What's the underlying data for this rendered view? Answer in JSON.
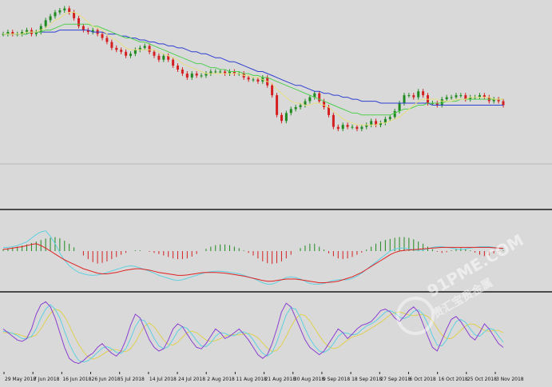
{
  "watermark": {
    "text": "91PME.COM",
    "subtitle": "贵汇宝贵金属"
  },
  "colors": {
    "background": "#d9d9d9",
    "bull": "#1f8a1f",
    "bear": "#d42020",
    "ma_fast": "#e8e080",
    "ma_mid": "#4fd04f",
    "ma_slow": "#2d3fd0",
    "macd_signal": "#e02020",
    "macd_line": "#5fd0e0",
    "stoch_k": "#8a3fd0",
    "stoch_d": "#5fd0e0",
    "stoch_slow": "#e0d050",
    "separator": "#4a4a4a"
  },
  "chart_data": [
    {
      "type": "candlestick",
      "title": "",
      "x_ticks": [
        "29 May 2018",
        "7 Jun 2018",
        "16 Jun 2018",
        "26 Jun 2018",
        "5 Jul 2018",
        "14 Jul 2018",
        "24 Jul 2018",
        "2 Aug 2018",
        "11 Aug 2018",
        "21 Aug 2018",
        "30 Aug 2018",
        "9 Sep 2018",
        "18 Sep 2018",
        "27 Sep 2018",
        "6 Oct 2018",
        "16 Oct 2018",
        "25 Oct 2018",
        "3 Nov 2018"
      ],
      "ylim": [
        0,
        100
      ],
      "close": [
        86,
        87,
        86,
        86,
        87,
        88,
        86,
        87,
        90,
        93,
        95,
        97,
        98,
        99,
        97,
        94,
        90,
        88,
        87,
        88,
        86,
        84,
        82,
        79,
        78,
        77,
        75,
        76,
        78,
        79,
        80,
        77,
        75,
        73,
        75,
        73,
        70,
        68,
        66,
        64,
        66,
        65,
        65,
        66,
        67,
        67,
        67,
        66,
        67,
        66,
        66,
        64,
        63,
        63,
        62,
        64,
        60,
        55,
        45,
        42,
        46,
        48,
        49,
        50,
        52,
        54,
        56,
        52,
        49,
        45,
        39,
        38,
        40,
        39,
        39,
        38,
        39,
        40,
        42,
        40,
        41,
        43,
        44,
        47,
        51,
        55,
        55,
        54,
        57,
        55,
        51,
        51,
        50,
        53,
        54,
        54,
        55,
        55,
        53,
        54,
        54,
        55,
        54,
        52,
        53,
        52,
        50
      ],
      "ma_fast": [
        86,
        86,
        86,
        86,
        86,
        87,
        87,
        87,
        88,
        89,
        91,
        93,
        94,
        96,
        97,
        97,
        96,
        94,
        92,
        90,
        89,
        88,
        86,
        84,
        83,
        81,
        79,
        78,
        78,
        78,
        78,
        78,
        78,
        77,
        76,
        75,
        74,
        73,
        71,
        70,
        69,
        68,
        67,
        66,
        66,
        66,
        66,
        66,
        66,
        66,
        66,
        65,
        65,
        64,
        64,
        63,
        62,
        61,
        58,
        56,
        54,
        52,
        51,
        51,
        50,
        50,
        51,
        51,
        50,
        49,
        47,
        45,
        43,
        42,
        41,
        40,
        40,
        40,
        40,
        40,
        41,
        41,
        42,
        43,
        44,
        46,
        48,
        50,
        52,
        53,
        53,
        53,
        53,
        52,
        52,
        52,
        53,
        53,
        53,
        54,
        54,
        54,
        54,
        54,
        53,
        53,
        53
      ],
      "ma_mid": [
        86,
        86,
        86,
        86,
        86,
        86,
        87,
        87,
        87,
        88,
        88,
        89,
        90,
        91,
        91,
        91,
        91,
        91,
        91,
        90,
        90,
        89,
        88,
        87,
        86,
        85,
        84,
        84,
        83,
        82,
        82,
        81,
        80,
        79,
        78,
        77,
        76,
        75,
        74,
        73,
        72,
        71,
        71,
        70,
        69,
        69,
        68,
        68,
        67,
        67,
        67,
        66,
        66,
        65,
        65,
        64,
        64,
        63,
        62,
        61,
        60,
        59,
        58,
        57,
        56,
        55,
        54,
        53,
        52,
        51,
        50,
        49,
        48,
        47,
        46,
        46,
        45,
        45,
        45,
        45,
        45,
        45,
        45,
        46,
        47,
        48,
        48,
        49,
        50,
        50,
        51,
        51,
        51,
        51,
        52,
        52,
        52,
        53,
        53,
        53,
        53,
        53,
        53,
        53,
        53,
        53,
        53
      ],
      "ma_slow": [
        86,
        86,
        86,
        86,
        86,
        86,
        87,
        87,
        87,
        87,
        87,
        87,
        88,
        88,
        88,
        88,
        88,
        88,
        88,
        87,
        87,
        87,
        86,
        86,
        86,
        85,
        85,
        84,
        84,
        83,
        83,
        82,
        82,
        81,
        81,
        80,
        80,
        79,
        79,
        78,
        77,
        77,
        76,
        76,
        75,
        74,
        74,
        73,
        72,
        72,
        71,
        70,
        69,
        68,
        67,
        67,
        66,
        65,
        64,
        63,
        62,
        61,
        60,
        60,
        59,
        58,
        57,
        57,
        56,
        56,
        55,
        55,
        54,
        54,
        53,
        53,
        52,
        52,
        52,
        52,
        51,
        51,
        51,
        51,
        51,
        51,
        51,
        51,
        51,
        51,
        51,
        50,
        50,
        50,
        50,
        50,
        50,
        50,
        50,
        50,
        50,
        50,
        50,
        50,
        50,
        50,
        50
      ]
    },
    {
      "type": "bar",
      "title": "",
      "ylim": [
        -1,
        1
      ],
      "histogram": [
        0.05,
        0.08,
        0.1,
        0.12,
        0.15,
        0.18,
        0.22,
        0.26,
        0.3,
        0.34,
        0.36,
        0.38,
        0.35,
        0.28,
        0.2,
        0.1,
        0,
        -0.12,
        -0.22,
        -0.3,
        -0.34,
        -0.32,
        -0.28,
        -0.22,
        -0.16,
        -0.1,
        -0.05,
        0,
        0.02,
        0.02,
        0,
        -0.02,
        -0.05,
        -0.08,
        -0.12,
        -0.16,
        -0.2,
        -0.22,
        -0.22,
        -0.2,
        -0.15,
        -0.08,
        0,
        0.06,
        0.12,
        0.16,
        0.18,
        0.18,
        0.16,
        0.12,
        0.08,
        0.02,
        -0.05,
        -0.12,
        -0.2,
        -0.28,
        -0.33,
        -0.35,
        -0.33,
        -0.28,
        -0.2,
        -0.1,
        0,
        0.08,
        0.15,
        0.2,
        0.2,
        0.12,
        0.04,
        -0.06,
        -0.14,
        -0.2,
        -0.22,
        -0.2,
        -0.16,
        -0.1,
        -0.04,
        0.04,
        0.12,
        0.2,
        0.26,
        0.3,
        0.33,
        0.36,
        0.38,
        0.38,
        0.36,
        0.32,
        0.26,
        0.2,
        0.12,
        0.05,
        -0.02,
        -0.05,
        -0.03,
        0.02,
        0.06,
        0.08,
        0.06,
        0.02,
        -0.04,
        -0.1,
        -0.14,
        -0.12,
        -0.06,
        -0.02,
        0.02
      ],
      "macd_line": [
        0.1,
        0.1,
        0.12,
        0.15,
        0.2,
        0.25,
        0.35,
        0.45,
        0.52,
        0.55,
        0.4,
        0.2,
        -0.05,
        -0.25,
        -0.4,
        -0.5,
        -0.58,
        -0.62,
        -0.65,
        -0.66,
        -0.65,
        -0.62,
        -0.58,
        -0.54,
        -0.5,
        -0.46,
        -0.42,
        -0.4,
        -0.42,
        -0.46,
        -0.5,
        -0.55,
        -0.6,
        -0.66,
        -0.7,
        -0.74,
        -0.78,
        -0.8,
        -0.78,
        -0.74,
        -0.7,
        -0.66,
        -0.62,
        -0.58,
        -0.56,
        -0.55,
        -0.55,
        -0.56,
        -0.58,
        -0.6,
        -0.62,
        -0.66,
        -0.7,
        -0.74,
        -0.8,
        -0.86,
        -0.9,
        -0.9,
        -0.85,
        -0.78,
        -0.72,
        -0.7,
        -0.72,
        -0.76,
        -0.82,
        -0.88,
        -0.9,
        -0.9,
        -0.88,
        -0.84,
        -0.8,
        -0.78,
        -0.78,
        -0.78,
        -0.74,
        -0.68,
        -0.6,
        -0.5,
        -0.4,
        -0.3,
        -0.2,
        -0.1,
        0,
        0.05,
        0.08,
        0.08,
        0.06,
        0.03,
        0.02,
        0.03,
        0.06,
        0.1,
        0.12,
        0.12,
        0.1,
        0.08,
        0.06,
        0.05,
        0.06,
        0.08,
        0.1,
        0.12,
        0.12,
        0.12,
        0.1,
        0.08,
        0.06
      ],
      "signal_line": [
        0.05,
        0.06,
        0.08,
        0.1,
        0.12,
        0.15,
        0.18,
        0.2,
        0.15,
        0.08,
        0,
        -0.08,
        -0.16,
        -0.24,
        -0.3,
        -0.36,
        -0.42,
        -0.48,
        -0.52,
        -0.56,
        -0.6,
        -0.62,
        -0.62,
        -0.6,
        -0.58,
        -0.55,
        -0.52,
        -0.5,
        -0.48,
        -0.48,
        -0.5,
        -0.52,
        -0.55,
        -0.58,
        -0.6,
        -0.62,
        -0.64,
        -0.66,
        -0.66,
        -0.65,
        -0.63,
        -0.61,
        -0.59,
        -0.58,
        -0.58,
        -0.58,
        -0.59,
        -0.6,
        -0.62,
        -0.64,
        -0.66,
        -0.68,
        -0.71,
        -0.74,
        -0.77,
        -0.8,
        -0.82,
        -0.82,
        -0.8,
        -0.78,
        -0.76,
        -0.76,
        -0.76,
        -0.78,
        -0.8,
        -0.82,
        -0.84,
        -0.86,
        -0.86,
        -0.85,
        -0.84,
        -0.82,
        -0.78,
        -0.74,
        -0.7,
        -0.64,
        -0.58,
        -0.5,
        -0.42,
        -0.34,
        -0.26,
        -0.18,
        -0.1,
        -0.04,
        0,
        0.02,
        0.03,
        0.04,
        0.05,
        0.06,
        0.07,
        0.08,
        0.09,
        0.1,
        0.1,
        0.1,
        0.1,
        0.1,
        0.1,
        0.1,
        0.1,
        0.1,
        0.1,
        0.1,
        0.09,
        0.08,
        0.07
      ]
    },
    {
      "type": "line",
      "title": "",
      "ylim": [
        0,
        100
      ],
      "stoch_k": [
        55,
        50,
        45,
        40,
        38,
        42,
        55,
        75,
        88,
        92,
        85,
        70,
        50,
        30,
        15,
        10,
        8,
        12,
        18,
        22,
        30,
        35,
        28,
        22,
        18,
        25,
        40,
        60,
        75,
        70,
        55,
        40,
        30,
        25,
        28,
        40,
        55,
        62,
        58,
        48,
        38,
        30,
        28,
        35,
        45,
        55,
        50,
        42,
        45,
        50,
        55,
        48,
        40,
        30,
        20,
        15,
        20,
        35,
        55,
        78,
        90,
        85,
        70,
        55,
        40,
        30,
        25,
        20,
        25,
        35,
        45,
        55,
        50,
        42,
        48,
        55,
        60,
        62,
        65,
        72,
        80,
        82,
        78,
        70,
        65,
        72,
        80,
        85,
        78,
        62,
        45,
        30,
        25,
        40,
        55,
        68,
        72,
        65,
        55,
        45,
        40,
        50,
        62,
        55,
        45,
        35,
        30
      ],
      "stoch_d": [
        52,
        51,
        49,
        46,
        42,
        42,
        45,
        55,
        70,
        82,
        88,
        82,
        70,
        52,
        35,
        22,
        12,
        10,
        12,
        17,
        23,
        29,
        31,
        28,
        23,
        22,
        28,
        42,
        58,
        68,
        66,
        55,
        42,
        32,
        28,
        31,
        41,
        52,
        58,
        56,
        48,
        39,
        32,
        31,
        36,
        45,
        50,
        49,
        46,
        46,
        50,
        51,
        48,
        40,
        30,
        22,
        18,
        23,
        37,
        56,
        74,
        84,
        82,
        70,
        55,
        42,
        32,
        25,
        23,
        27,
        35,
        45,
        50,
        49,
        47,
        48,
        54,
        59,
        62,
        66,
        72,
        78,
        80,
        77,
        71,
        69,
        72,
        79,
        81,
        75,
        62,
        46,
        33,
        32,
        40,
        54,
        65,
        68,
        64,
        55,
        47,
        45,
        51,
        56,
        54,
        45,
        37
      ],
      "stoch_slow": [
        50,
        50,
        49,
        48,
        46,
        44,
        44,
        47,
        55,
        66,
        76,
        82,
        80,
        72,
        60,
        46,
        34,
        24,
        17,
        14,
        16,
        20,
        24,
        27,
        27,
        25,
        24,
        28,
        37,
        49,
        59,
        63,
        58,
        49,
        40,
        34,
        33,
        37,
        44,
        50,
        52,
        50,
        45,
        40,
        38,
        39,
        42,
        45,
        47,
        47,
        47,
        48,
        49,
        47,
        43,
        36,
        29,
        24,
        26,
        33,
        45,
        58,
        69,
        75,
        73,
        66,
        56,
        46,
        37,
        31,
        28,
        30,
        35,
        40,
        44,
        46,
        48,
        52,
        56,
        60,
        64,
        69,
        74,
        77,
        78,
        76,
        74,
        73,
        74,
        75,
        72,
        66,
        56,
        47,
        42,
        42,
        47,
        53,
        59,
        62,
        61,
        57,
        53,
        52,
        53,
        53,
        50
      ]
    }
  ]
}
